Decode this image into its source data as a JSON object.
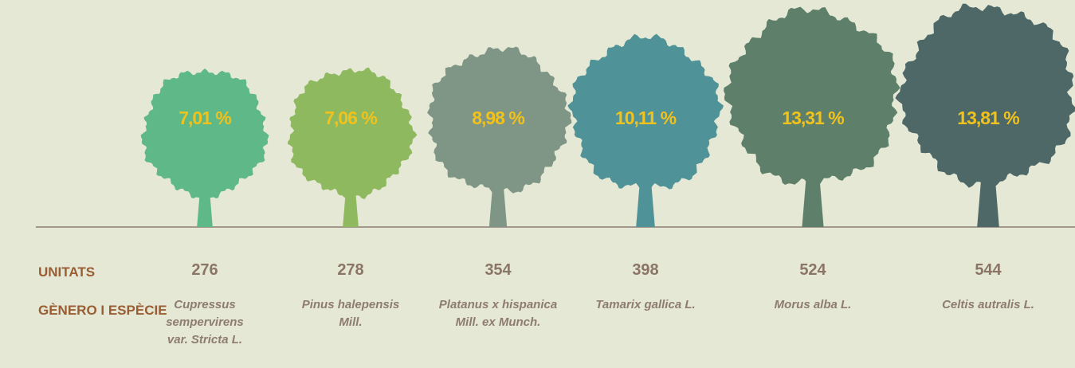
{
  "chart_data": {
    "type": "tree-pictogram",
    "categories": [
      "Cupressus sempervirens var. Stricta L.",
      "Pinus halepensis Mill.",
      "Platanus x hispanica Mill. ex Munch.",
      "Tamarix gallica L.",
      "Morus alba L.",
      "Celtis autralis L."
    ],
    "values": [
      7.01,
      7.06,
      8.98,
      10.11,
      13.31,
      13.81
    ],
    "value_labels": [
      "7,01 %",
      "7,06 %",
      "8,98 %",
      "10,11 %",
      "13,31 %",
      "13,81 %"
    ],
    "colors": [
      "#5fb888",
      "#8fb95f",
      "#7f9686",
      "#4f9298",
      "#5e806b",
      "#4d6867"
    ],
    "label_color": "#f1c21b",
    "units": [
      276,
      278,
      354,
      398,
      524,
      544
    ],
    "row_labels": [
      "UNITATS",
      "GÈNERO I ESPÈCIE"
    ]
  }
}
